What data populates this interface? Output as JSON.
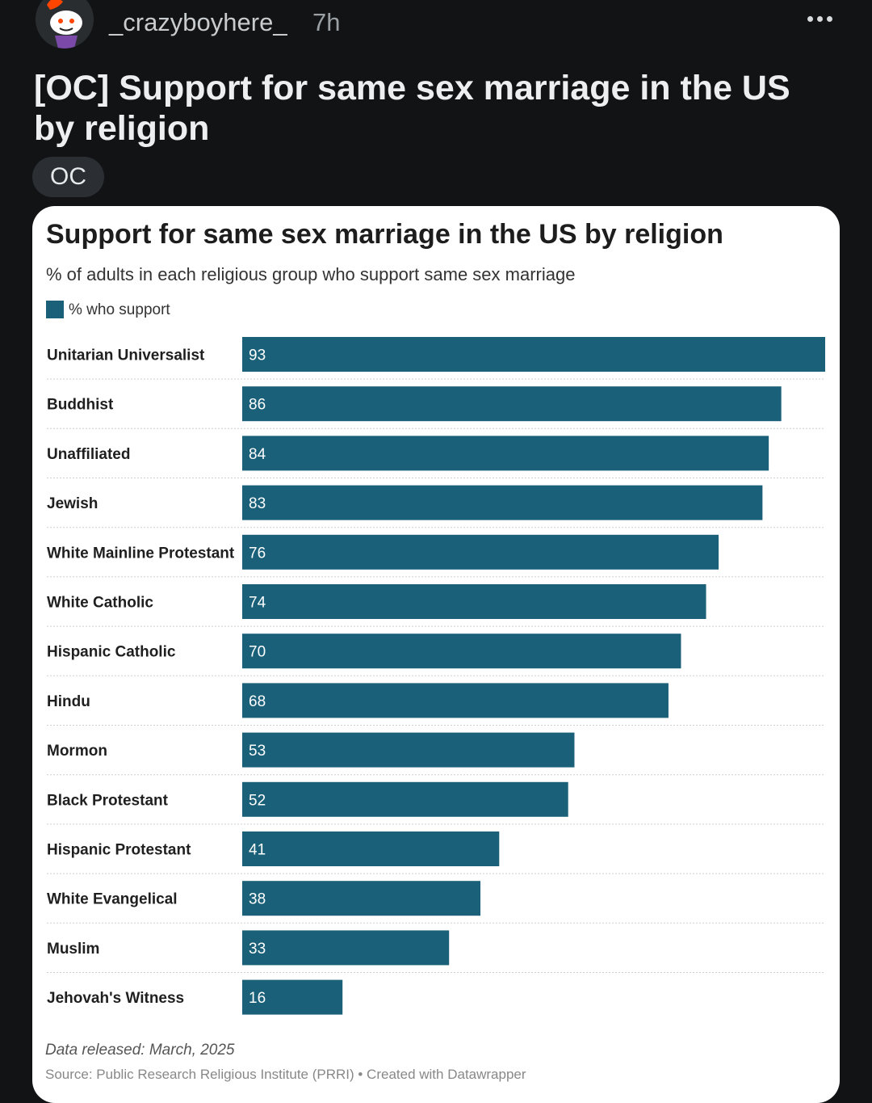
{
  "post": {
    "username": "_crazyboyhere_",
    "time": "7h",
    "title": "[OC] Support for same sex marriage in the US by religion",
    "flair": "OC"
  },
  "chart_data": {
    "type": "bar",
    "orientation": "horizontal",
    "title": "Support for same sex marriage in the US by religion",
    "subtitle": "% of adults in each religious group who support same sex marriage",
    "legend": "% who support",
    "categories": [
      "Unitarian Universalist",
      "Buddhist",
      "Unaffiliated",
      "Jewish",
      "White Mainline Protestant",
      "White Catholic",
      "Hispanic Catholic",
      "Hindu",
      "Mormon",
      "Black Protestant",
      "Hispanic Protestant",
      "White Evangelical",
      "Muslim",
      "Jehovah's Witness"
    ],
    "values": [
      93,
      86,
      84,
      83,
      76,
      74,
      70,
      68,
      53,
      52,
      41,
      38,
      33,
      16
    ],
    "xlim": [
      0,
      93
    ],
    "bar_color": "#1a6079",
    "footnote": "Data released: March, 2025",
    "source": "Source: Public Research Religious Institute (PRRI)  • Created with Datawrapper"
  }
}
